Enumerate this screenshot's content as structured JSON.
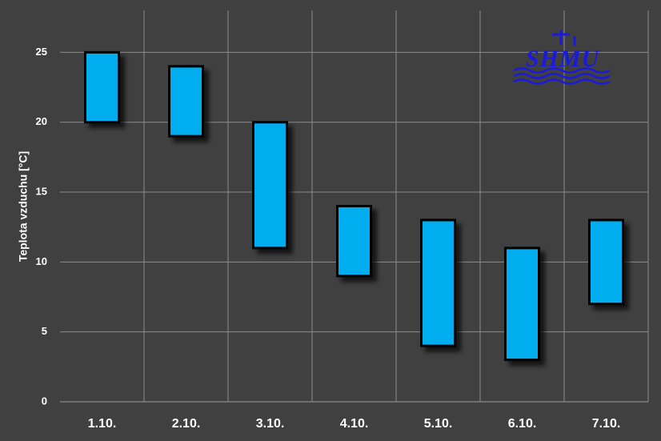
{
  "chart_data": {
    "type": "range_bar",
    "y_label": "Teplota vzduchu [°C]",
    "logo": "SHMU",
    "categories": [
      "1.10.",
      "2.10.",
      "3.10.",
      "4.10.",
      "5.10.",
      "6.10.",
      "7.10."
    ],
    "low": [
      20,
      19,
      11,
      9,
      4,
      3,
      7
    ],
    "high": [
      25,
      24,
      20,
      14,
      13,
      11,
      13
    ],
    "color": "#00aeef",
    "ylim": [
      0,
      28
    ],
    "yticks": [
      0,
      5,
      10,
      15,
      20,
      25
    ],
    "grid": true
  }
}
